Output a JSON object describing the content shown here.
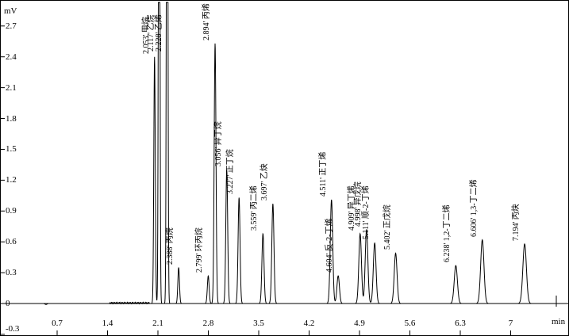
{
  "chart_data": {
    "type": "line",
    "description": "Gas chromatogram, detector signal vs retention time",
    "ylabel": "mV",
    "xlabel": "min",
    "x_ticks": [
      "0.7",
      "1.4",
      "2.1",
      "2.8",
      "3.5",
      "4.2",
      "4.9",
      "5.6",
      "6.3",
      "7"
    ],
    "y_ticks": [
      "2.7",
      "2.4",
      "2.1",
      "1.8",
      "1.5",
      "1.2",
      "0.9",
      "0.6",
      "0.3",
      "0",
      "-0.3"
    ],
    "xlim": [
      0,
      7.8
    ],
    "ylim": [
      -0.3,
      2.9
    ],
    "grid": false,
    "line_color": "#000000",
    "background": "#ffffff",
    "peaks": [
      {
        "time": 2.053,
        "name": "甲烷",
        "label": "2.053' 甲烷",
        "height_mV": 2.4,
        "clipped": false
      },
      {
        "time": 2.117,
        "name": "乙烷",
        "label": "2.117' 乙烷",
        "height_mV": null,
        "clipped": true
      },
      {
        "time": 2.228,
        "name": "乙烯",
        "label": "2.228' 乙烯",
        "height_mV": null,
        "clipped": true
      },
      {
        "time": 2.388,
        "name": "丙烷",
        "label": "2.388' 丙烷",
        "height_mV": 0.35,
        "clipped": false
      },
      {
        "time": 2.799,
        "name": "环丙烷",
        "label": "2.799' 环丙烷",
        "height_mV": 0.27,
        "clipped": false
      },
      {
        "time": 2.894,
        "name": "丙烯",
        "label": "2.894' 丙烯",
        "height_mV": 2.53,
        "clipped": false
      },
      {
        "time": 3.056,
        "name": "异丁烷",
        "label": "3.056' 异丁烷",
        "height_mV": 1.3,
        "clipped": false
      },
      {
        "time": 3.227,
        "name": "正丁烷",
        "label": "3.227' 正丁烷",
        "height_mV": 1.03,
        "clipped": false
      },
      {
        "time": 3.559,
        "name": "丙二烯",
        "label": "3.559' 丙二烯",
        "height_mV": 0.68,
        "clipped": false
      },
      {
        "time": 3.697,
        "name": "乙炔",
        "label": "3.697' 乙炔",
        "height_mV": 0.97,
        "clipped": false
      },
      {
        "time": 4.511,
        "name": "正丁烯",
        "label": "4.511' 正丁烯",
        "height_mV": 1.01,
        "clipped": false
      },
      {
        "time": 4.604,
        "name": "反-2-丁烯",
        "label": "4.604' 反-2-丁烯",
        "height_mV": 0.27,
        "clipped": false
      },
      {
        "time": 4.909,
        "name": "异丁烯",
        "label": "4.909' 异丁烯",
        "height_mV": 0.68,
        "clipped": false
      },
      {
        "time": 4.998,
        "name": "异戊烷",
        "label": "4.998' 异戊烷",
        "height_mV": 0.72,
        "clipped": false
      },
      {
        "time": 5.111,
        "name": "顺-2-丁烯",
        "label": "5.111' 顺-2-丁烯",
        "height_mV": 0.59,
        "clipped": false
      },
      {
        "time": 5.402,
        "name": "正戊烷",
        "label": "5.402' 正戊烷",
        "height_mV": 0.49,
        "clipped": false
      },
      {
        "time": 6.238,
        "name": "1,2-丁二烯",
        "label": "6.238' 1,2-丁二烯",
        "height_mV": 0.37,
        "clipped": false
      },
      {
        "time": 6.606,
        "name": "1,3-丁二烯",
        "label": "6.606' 1,3-丁二烯",
        "height_mV": 0.62,
        "clipped": false
      },
      {
        "time": 7.194,
        "name": "丙炔",
        "label": "7.194' 丙炔",
        "height_mV": 0.58,
        "clipped": false
      }
    ]
  }
}
